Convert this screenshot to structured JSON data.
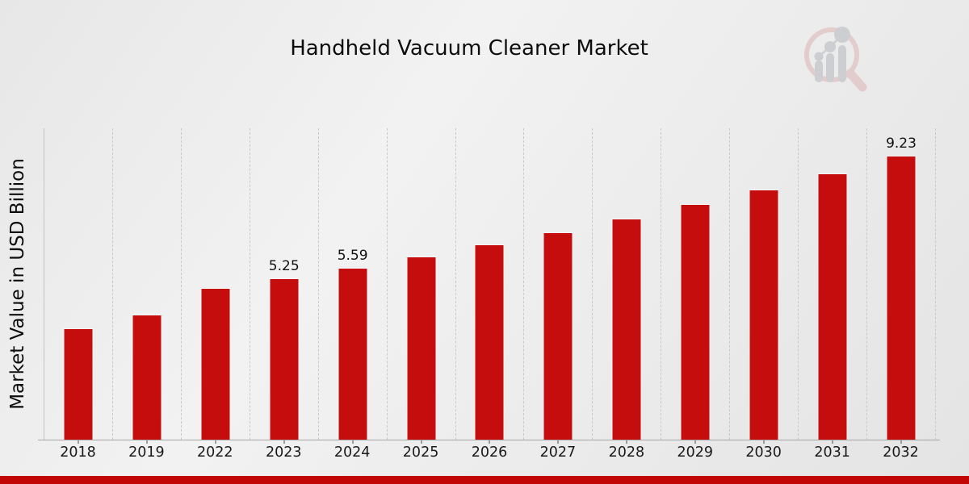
{
  "chart_data": {
    "type": "bar",
    "title": "Handheld Vacuum Cleaner Market",
    "xlabel": "",
    "ylabel": "Market Value in USD Billion",
    "categories": [
      "2018",
      "2019",
      "2022",
      "2023",
      "2024",
      "2025",
      "2026",
      "2027",
      "2028",
      "2029",
      "2030",
      "2031",
      "2032"
    ],
    "values": [
      3.61,
      4.05,
      4.93,
      5.25,
      5.59,
      5.95,
      6.34,
      6.75,
      7.18,
      7.65,
      8.14,
      8.67,
      9.23
    ],
    "bar_labels": [
      "",
      "",
      "",
      "5.25",
      "5.59",
      "",
      "",
      "",
      "",
      "",
      "",
      "",
      "9.23"
    ],
    "bar_color": "#c50d0d",
    "ylim": [
      0,
      10.15
    ],
    "grid": "vertical-dashed",
    "legend": "none"
  },
  "branding": {
    "logo_icon": "magnifier-bar-chart-watermark",
    "accent_bar_color": "#c20606",
    "logo_ring_color": "#dcb3b3",
    "logo_bars_color": "#b4b8bf"
  }
}
